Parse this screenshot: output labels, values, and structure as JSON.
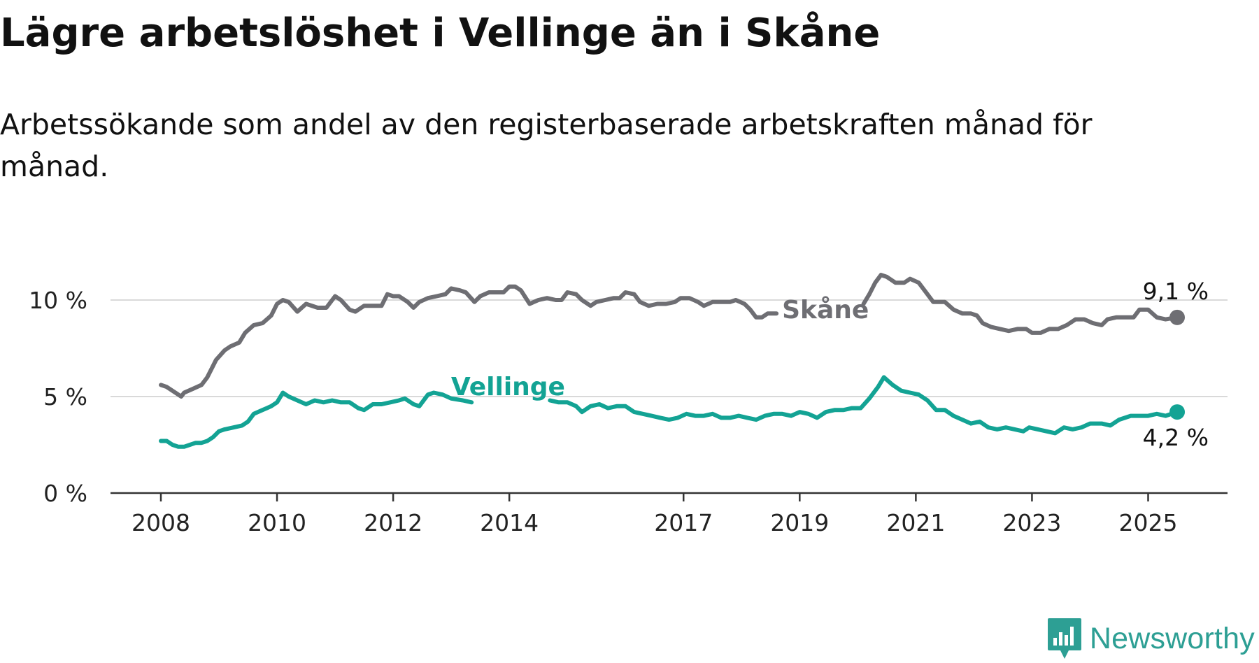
{
  "title": "Lägre arbetslöshet i Vellinge än i Skåne",
  "subtitle": "Arbetssökande som andel av den registerbaserade arbetskraften månad för månad.",
  "brand": {
    "name": "Newsworthy",
    "logo_icon": "bar-chart-speech-bubble-icon",
    "color": "#2d9f94"
  },
  "chart_data": {
    "type": "line",
    "title": "Lägre arbetslöshet i Vellinge än i Skåne",
    "xlabel": "",
    "ylabel": "",
    "xlim": [
      2008.0,
      2025.5
    ],
    "ylim": [
      0,
      12
    ],
    "y_ticks": [
      0,
      5,
      10
    ],
    "y_tick_labels": [
      "0 %",
      "5 %",
      "10 %"
    ],
    "x_ticks": [
      2008,
      2010,
      2012,
      2014,
      2017,
      2019,
      2021,
      2023,
      2025
    ],
    "x_tick_labels": [
      "2008",
      "2010",
      "2012",
      "2014",
      "2017",
      "2019",
      "2021",
      "2023",
      "2025"
    ],
    "grid": "horizontal",
    "legend": "none (inline series labels)",
    "series": [
      {
        "name": "Skåne",
        "color": "#6e6e73",
        "end_label": "9,1 %",
        "label_position": [
          2018.6,
          9.5
        ],
        "gap": [
          2018.6,
          2020.1
        ],
        "points": [
          [
            2008.0,
            5.6
          ],
          [
            2008.1,
            5.5
          ],
          [
            2008.25,
            5.2
          ],
          [
            2008.35,
            5.0
          ],
          [
            2008.4,
            5.2
          ],
          [
            2008.55,
            5.4
          ],
          [
            2008.7,
            5.6
          ],
          [
            2008.8,
            6.0
          ],
          [
            2008.95,
            6.9
          ],
          [
            2009.1,
            7.4
          ],
          [
            2009.2,
            7.6
          ],
          [
            2009.35,
            7.8
          ],
          [
            2009.45,
            8.3
          ],
          [
            2009.6,
            8.7
          ],
          [
            2009.75,
            8.8
          ],
          [
            2009.9,
            9.2
          ],
          [
            2010.0,
            9.8
          ],
          [
            2010.1,
            10.0
          ],
          [
            2010.2,
            9.9
          ],
          [
            2010.35,
            9.4
          ],
          [
            2010.5,
            9.8
          ],
          [
            2010.7,
            9.6
          ],
          [
            2010.85,
            9.6
          ],
          [
            2011.0,
            10.2
          ],
          [
            2011.1,
            10.0
          ],
          [
            2011.25,
            9.5
          ],
          [
            2011.35,
            9.4
          ],
          [
            2011.5,
            9.7
          ],
          [
            2011.65,
            9.7
          ],
          [
            2011.8,
            9.7
          ],
          [
            2011.9,
            10.3
          ],
          [
            2012.0,
            10.2
          ],
          [
            2012.1,
            10.2
          ],
          [
            2012.25,
            9.9
          ],
          [
            2012.35,
            9.6
          ],
          [
            2012.45,
            9.9
          ],
          [
            2012.6,
            10.1
          ],
          [
            2012.75,
            10.2
          ],
          [
            2012.9,
            10.3
          ],
          [
            2013.0,
            10.6
          ],
          [
            2013.15,
            10.5
          ],
          [
            2013.25,
            10.4
          ],
          [
            2013.4,
            9.9
          ],
          [
            2013.5,
            10.2
          ],
          [
            2013.65,
            10.4
          ],
          [
            2013.8,
            10.4
          ],
          [
            2013.9,
            10.4
          ],
          [
            2014.0,
            10.7
          ],
          [
            2014.1,
            10.7
          ],
          [
            2014.2,
            10.5
          ],
          [
            2014.35,
            9.8
          ],
          [
            2014.5,
            10.0
          ],
          [
            2014.65,
            10.1
          ],
          [
            2014.8,
            10.0
          ],
          [
            2014.9,
            10.0
          ],
          [
            2015.0,
            10.4
          ],
          [
            2015.15,
            10.3
          ],
          [
            2015.25,
            10.0
          ],
          [
            2015.4,
            9.7
          ],
          [
            2015.5,
            9.9
          ],
          [
            2015.65,
            10.0
          ],
          [
            2015.8,
            10.1
          ],
          [
            2015.9,
            10.1
          ],
          [
            2016.0,
            10.4
          ],
          [
            2016.15,
            10.3
          ],
          [
            2016.25,
            9.9
          ],
          [
            2016.4,
            9.7
          ],
          [
            2016.55,
            9.8
          ],
          [
            2016.7,
            9.8
          ],
          [
            2016.85,
            9.9
          ],
          [
            2016.95,
            10.1
          ],
          [
            2017.1,
            10.1
          ],
          [
            2017.25,
            9.9
          ],
          [
            2017.35,
            9.7
          ],
          [
            2017.5,
            9.9
          ],
          [
            2017.65,
            9.9
          ],
          [
            2017.8,
            9.9
          ],
          [
            2017.9,
            10.0
          ],
          [
            2018.05,
            9.8
          ],
          [
            2018.15,
            9.5
          ],
          [
            2018.25,
            9.1
          ],
          [
            2018.35,
            9.1
          ],
          [
            2018.45,
            9.3
          ],
          [
            2018.6,
            9.3
          ],
          [
            2020.1,
            9.8
          ],
          [
            2020.2,
            10.3
          ],
          [
            2020.3,
            10.9
          ],
          [
            2020.4,
            11.3
          ],
          [
            2020.5,
            11.2
          ],
          [
            2020.65,
            10.9
          ],
          [
            2020.8,
            10.9
          ],
          [
            2020.9,
            11.1
          ],
          [
            2021.05,
            10.9
          ],
          [
            2021.15,
            10.5
          ],
          [
            2021.3,
            9.9
          ],
          [
            2021.5,
            9.9
          ],
          [
            2021.65,
            9.5
          ],
          [
            2021.8,
            9.3
          ],
          [
            2021.95,
            9.3
          ],
          [
            2022.05,
            9.2
          ],
          [
            2022.15,
            8.8
          ],
          [
            2022.3,
            8.6
          ],
          [
            2022.45,
            8.5
          ],
          [
            2022.6,
            8.4
          ],
          [
            2022.75,
            8.5
          ],
          [
            2022.9,
            8.5
          ],
          [
            2023.0,
            8.3
          ],
          [
            2023.15,
            8.3
          ],
          [
            2023.3,
            8.5
          ],
          [
            2023.45,
            8.5
          ],
          [
            2023.6,
            8.7
          ],
          [
            2023.75,
            9.0
          ],
          [
            2023.9,
            9.0
          ],
          [
            2024.05,
            8.8
          ],
          [
            2024.2,
            8.7
          ],
          [
            2024.3,
            9.0
          ],
          [
            2024.45,
            9.1
          ],
          [
            2024.6,
            9.1
          ],
          [
            2024.75,
            9.1
          ],
          [
            2024.85,
            9.5
          ],
          [
            2025.0,
            9.5
          ],
          [
            2025.15,
            9.1
          ],
          [
            2025.3,
            9.0
          ],
          [
            2025.5,
            9.1
          ]
        ]
      },
      {
        "name": "Vellinge",
        "color": "#13a394",
        "end_label": "4,2 %",
        "label_position": [
          2012.9,
          5.5
        ],
        "gap": [
          2013.35,
          2014.7
        ],
        "points": [
          [
            2008.0,
            2.7
          ],
          [
            2008.1,
            2.7
          ],
          [
            2008.2,
            2.5
          ],
          [
            2008.3,
            2.4
          ],
          [
            2008.4,
            2.4
          ],
          [
            2008.5,
            2.5
          ],
          [
            2008.6,
            2.6
          ],
          [
            2008.7,
            2.6
          ],
          [
            2008.8,
            2.7
          ],
          [
            2008.9,
            2.9
          ],
          [
            2009.0,
            3.2
          ],
          [
            2009.1,
            3.3
          ],
          [
            2009.25,
            3.4
          ],
          [
            2009.4,
            3.5
          ],
          [
            2009.5,
            3.7
          ],
          [
            2009.6,
            4.1
          ],
          [
            2009.75,
            4.3
          ],
          [
            2009.9,
            4.5
          ],
          [
            2010.0,
            4.7
          ],
          [
            2010.1,
            5.2
          ],
          [
            2010.2,
            5.0
          ],
          [
            2010.35,
            4.8
          ],
          [
            2010.5,
            4.6
          ],
          [
            2010.65,
            4.8
          ],
          [
            2010.8,
            4.7
          ],
          [
            2010.95,
            4.8
          ],
          [
            2011.1,
            4.7
          ],
          [
            2011.25,
            4.7
          ],
          [
            2011.4,
            4.4
          ],
          [
            2011.5,
            4.3
          ],
          [
            2011.65,
            4.6
          ],
          [
            2011.8,
            4.6
          ],
          [
            2011.95,
            4.7
          ],
          [
            2012.1,
            4.8
          ],
          [
            2012.2,
            4.9
          ],
          [
            2012.35,
            4.6
          ],
          [
            2012.45,
            4.5
          ],
          [
            2012.6,
            5.1
          ],
          [
            2012.7,
            5.2
          ],
          [
            2012.85,
            5.1
          ],
          [
            2013.0,
            4.9
          ],
          [
            2013.2,
            4.8
          ],
          [
            2013.35,
            4.7
          ],
          [
            2014.7,
            4.8
          ],
          [
            2014.85,
            4.7
          ],
          [
            2015.0,
            4.7
          ],
          [
            2015.15,
            4.5
          ],
          [
            2015.25,
            4.2
          ],
          [
            2015.4,
            4.5
          ],
          [
            2015.55,
            4.6
          ],
          [
            2015.7,
            4.4
          ],
          [
            2015.85,
            4.5
          ],
          [
            2016.0,
            4.5
          ],
          [
            2016.15,
            4.2
          ],
          [
            2016.3,
            4.1
          ],
          [
            2016.45,
            4.0
          ],
          [
            2016.6,
            3.9
          ],
          [
            2016.75,
            3.8
          ],
          [
            2016.9,
            3.9
          ],
          [
            2017.05,
            4.1
          ],
          [
            2017.2,
            4.0
          ],
          [
            2017.35,
            4.0
          ],
          [
            2017.5,
            4.1
          ],
          [
            2017.65,
            3.9
          ],
          [
            2017.8,
            3.9
          ],
          [
            2017.95,
            4.0
          ],
          [
            2018.1,
            3.9
          ],
          [
            2018.25,
            3.8
          ],
          [
            2018.4,
            4.0
          ],
          [
            2018.55,
            4.1
          ],
          [
            2018.7,
            4.1
          ],
          [
            2018.85,
            4.0
          ],
          [
            2019.0,
            4.2
          ],
          [
            2019.15,
            4.1
          ],
          [
            2019.3,
            3.9
          ],
          [
            2019.45,
            4.2
          ],
          [
            2019.6,
            4.3
          ],
          [
            2019.75,
            4.3
          ],
          [
            2019.9,
            4.4
          ],
          [
            2020.05,
            4.4
          ],
          [
            2020.2,
            4.9
          ],
          [
            2020.35,
            5.5
          ],
          [
            2020.45,
            6.0
          ],
          [
            2020.6,
            5.6
          ],
          [
            2020.75,
            5.3
          ],
          [
            2020.9,
            5.2
          ],
          [
            2021.05,
            5.1
          ],
          [
            2021.2,
            4.8
          ],
          [
            2021.35,
            4.3
          ],
          [
            2021.5,
            4.3
          ],
          [
            2021.65,
            4.0
          ],
          [
            2021.8,
            3.8
          ],
          [
            2021.95,
            3.6
          ],
          [
            2022.1,
            3.7
          ],
          [
            2022.25,
            3.4
          ],
          [
            2022.4,
            3.3
          ],
          [
            2022.55,
            3.4
          ],
          [
            2022.7,
            3.3
          ],
          [
            2022.85,
            3.2
          ],
          [
            2022.95,
            3.4
          ],
          [
            2023.1,
            3.3
          ],
          [
            2023.25,
            3.2
          ],
          [
            2023.4,
            3.1
          ],
          [
            2023.55,
            3.4
          ],
          [
            2023.7,
            3.3
          ],
          [
            2023.85,
            3.4
          ],
          [
            2024.0,
            3.6
          ],
          [
            2024.2,
            3.6
          ],
          [
            2024.35,
            3.5
          ],
          [
            2024.5,
            3.8
          ],
          [
            2024.7,
            4.0
          ],
          [
            2024.85,
            4.0
          ],
          [
            2025.0,
            4.0
          ],
          [
            2025.15,
            4.1
          ],
          [
            2025.3,
            4.0
          ],
          [
            2025.5,
            4.2
          ]
        ]
      }
    ]
  }
}
